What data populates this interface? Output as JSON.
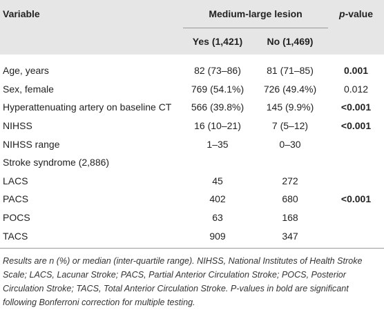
{
  "table": {
    "header": {
      "variable": "Variable",
      "group": "Medium-large lesion",
      "yes": "Yes (1,421)",
      "no": "No (1,469)",
      "p": "p-value"
    },
    "rows": [
      {
        "variable": "Age, years",
        "yes": "82 (73–86)",
        "no": "81 (71–85)",
        "p": "0.001",
        "p_bold": true
      },
      {
        "variable": "Sex, female",
        "yes": "769 (54.1%)",
        "no": "726 (49.4%)",
        "p": "0.012",
        "p_bold": false
      },
      {
        "variable": "Hyperattenuating artery on baseline CT",
        "yes": "566 (39.8%)",
        "no": "145 (9.9%)",
        "p": "<0.001",
        "p_bold": true
      },
      {
        "variable": "NIHSS",
        "yes": "16 (10–21)",
        "no": "7 (5–12)",
        "p": "<0.001",
        "p_bold": true
      },
      {
        "variable": "NIHSS range",
        "yes": "1–35",
        "no": "0–30"
      },
      {
        "variable": "Stroke syndrome (2,886)"
      },
      {
        "variable": "LACS",
        "yes": "45",
        "no": "272"
      },
      {
        "variable": "PACS",
        "yes": "402",
        "no": "680",
        "p": "<0.001",
        "p_bold": true
      },
      {
        "variable": "POCS",
        "yes": "63",
        "no": "168"
      },
      {
        "variable": "TACS",
        "yes": "909",
        "no": "347"
      }
    ],
    "footnote": "Results are n (%) or median (inter-quartile range). NIHSS, National Institutes of Health Stroke Scale; LACS, Lacunar Stroke; PACS, Partial Anterior Circulation Stroke; POCS, Posterior Circulation Stroke; TACS, Total Anterior Circulation Stroke. P-values in bold are significant following Bonferroni correction for multiple testing."
  }
}
